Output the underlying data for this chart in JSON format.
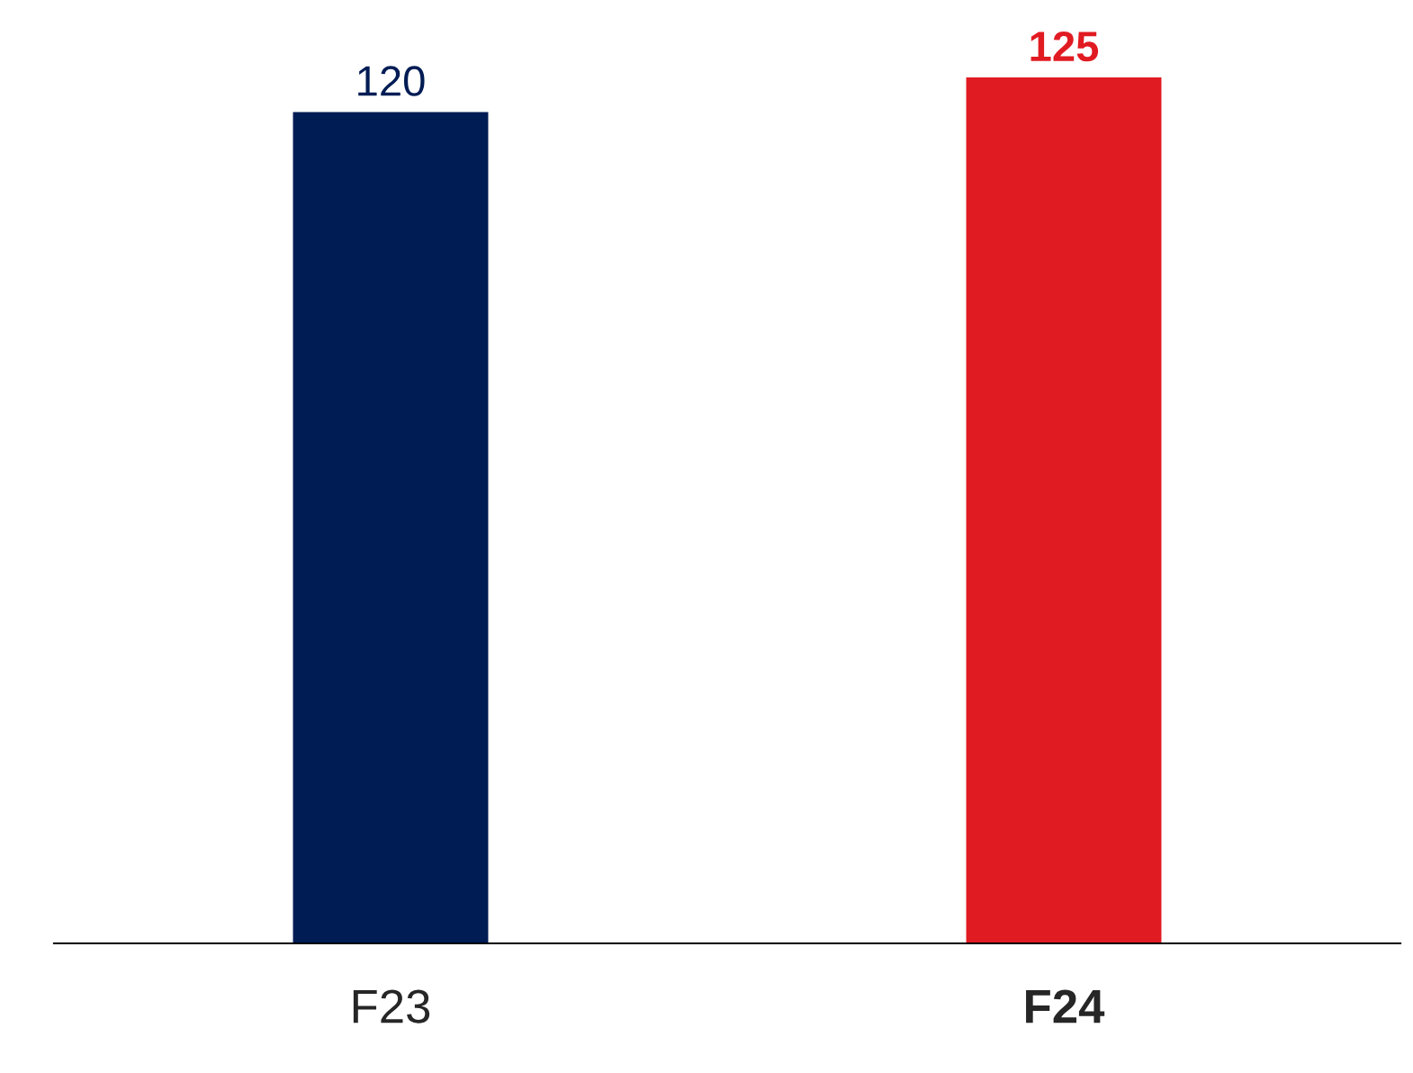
{
  "chart_data": {
    "type": "bar",
    "categories": [
      "F23",
      "F24"
    ],
    "values": [
      120,
      125
    ],
    "colors": [
      "#001c54",
      "#e11b22"
    ],
    "data_labels": true,
    "grid": false,
    "legend": false,
    "tick_labels": "x"
  }
}
